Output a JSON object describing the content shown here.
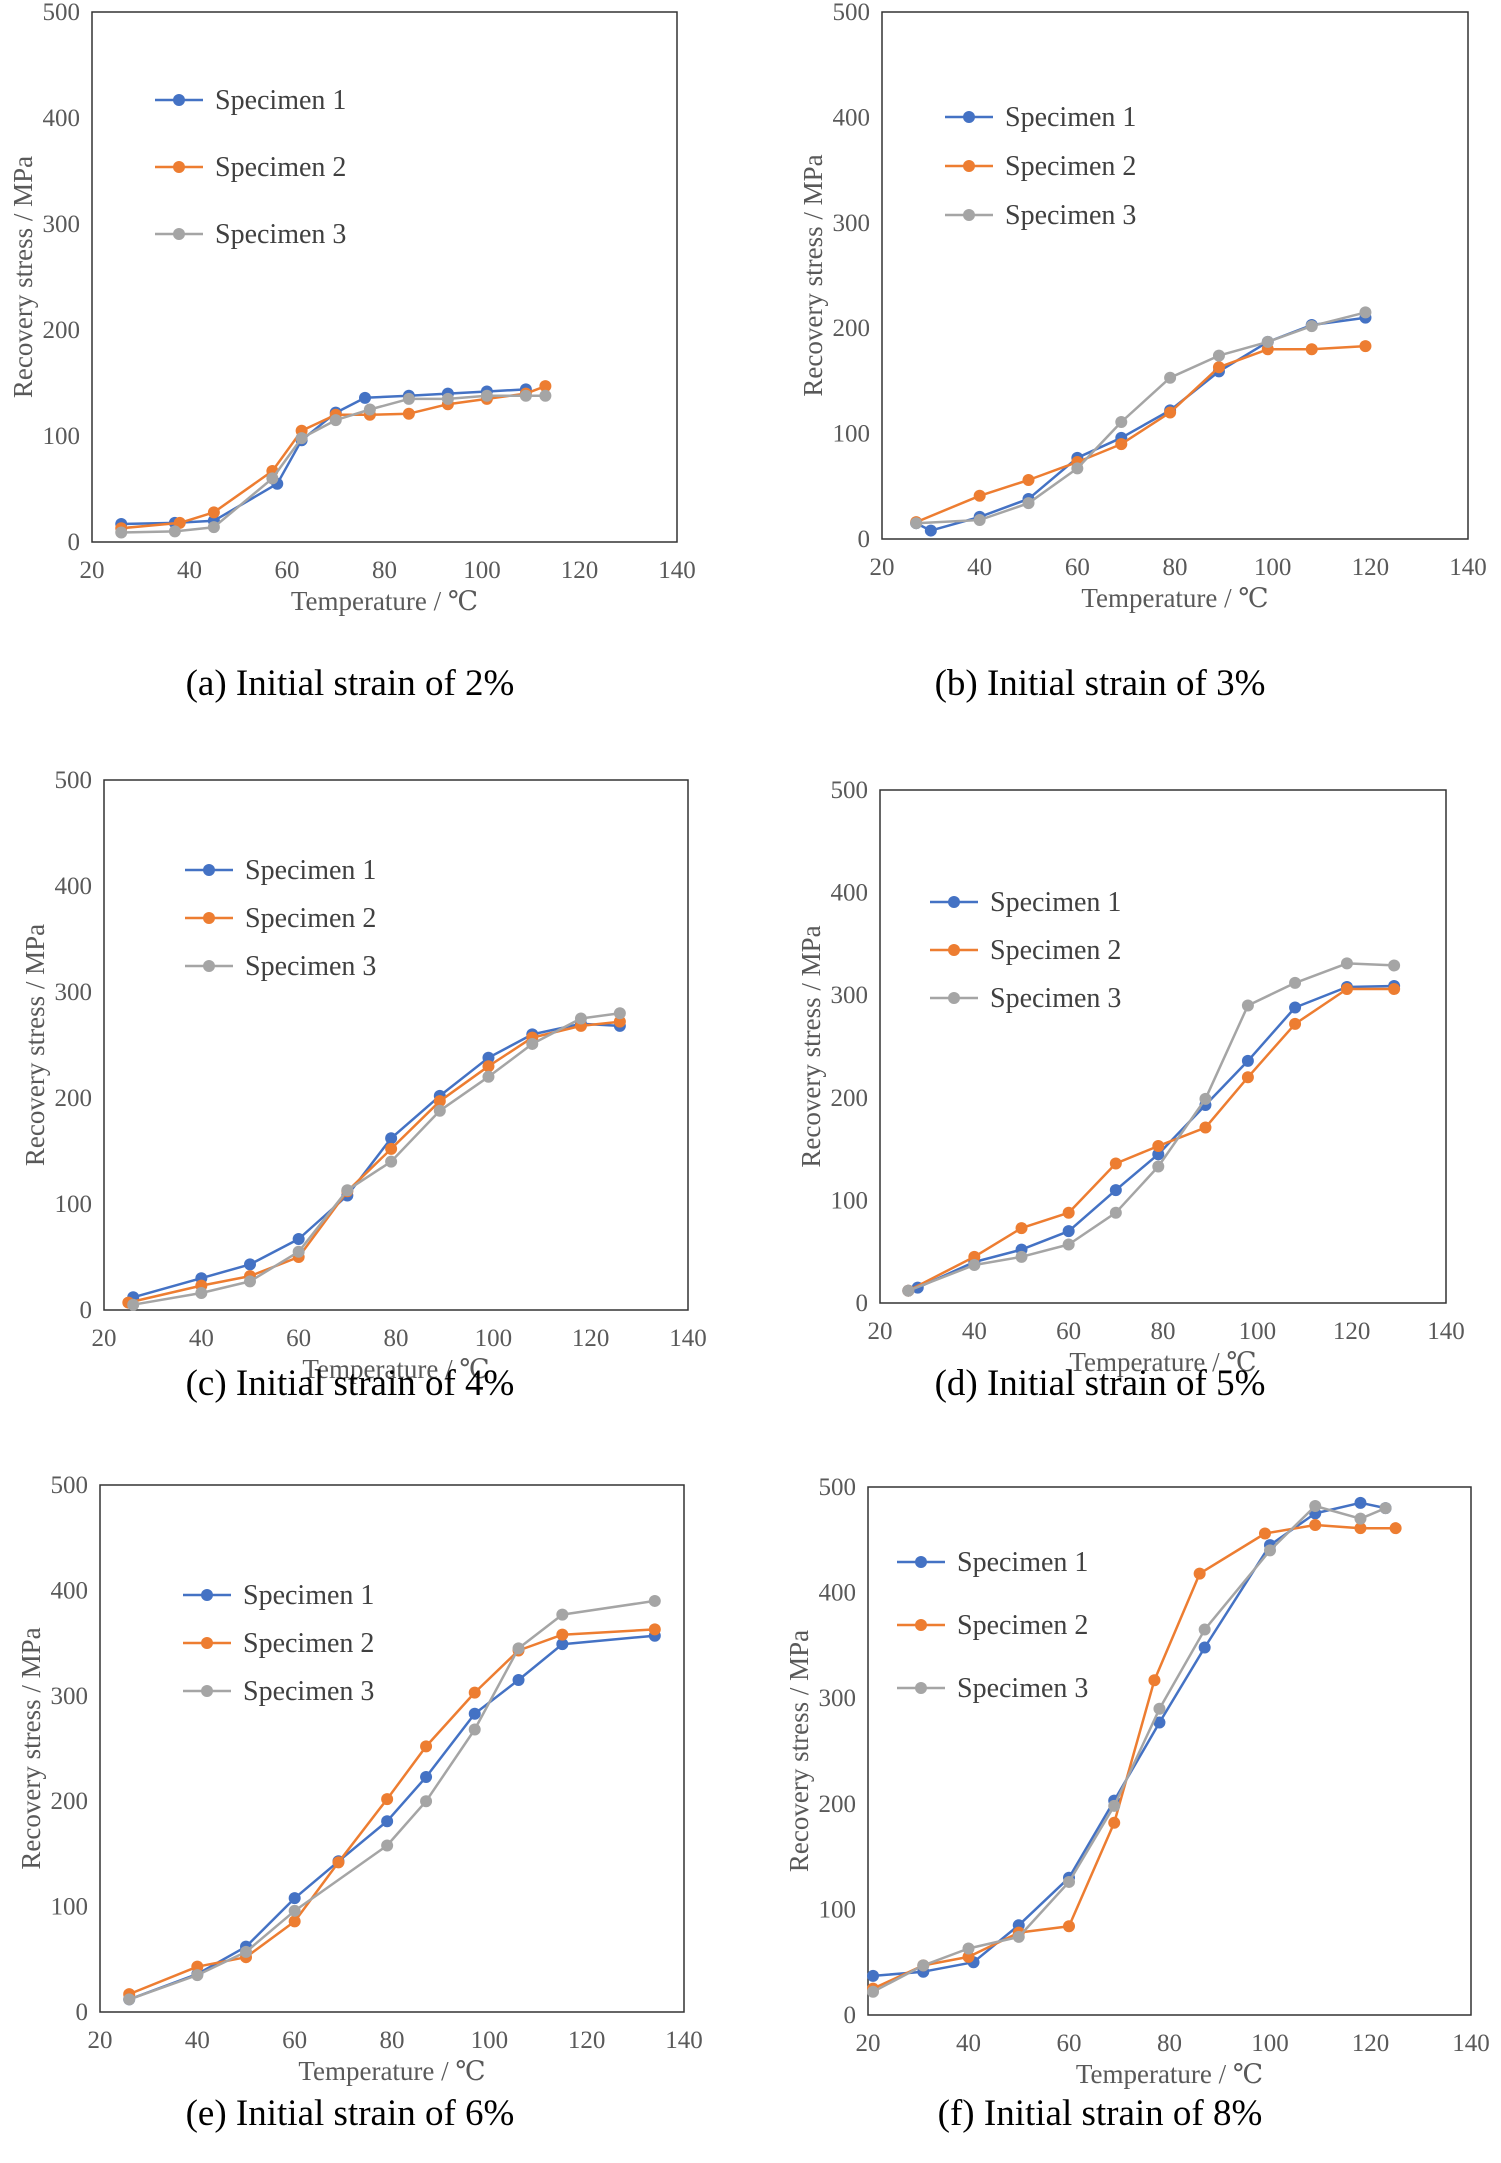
{
  "chart_data": [
    {
      "type": "line",
      "caption": "(a) Initial strain of 2%",
      "xlabel": "Temperature / ℃",
      "ylabel": "Recovery stress / MPa",
      "xlim": [
        20,
        140
      ],
      "ylim": [
        0,
        500
      ],
      "xticks": [
        "20",
        "40",
        "60",
        "80",
        "100",
        "120",
        "140"
      ],
      "yticks": [
        "0",
        "100",
        "200",
        "300",
        "400",
        "500"
      ],
      "legend_position": "upper-left",
      "series": [
        {
          "name": "Specimen 1",
          "color": "#4472C4",
          "x": [
            26,
            37,
            45,
            58,
            63,
            70,
            76,
            85,
            93,
            101,
            109
          ],
          "y": [
            17,
            18,
            20,
            55,
            96,
            122,
            136,
            138,
            140,
            142,
            144
          ]
        },
        {
          "name": "Specimen 2",
          "color": "#ED7D31",
          "x": [
            26,
            38,
            45,
            57,
            63,
            70,
            77,
            85,
            93,
            101,
            109,
            113
          ],
          "y": [
            13,
            18,
            28,
            67,
            105,
            120,
            120,
            121,
            130,
            135,
            140,
            147
          ]
        },
        {
          "name": "Specimen 3",
          "color": "#A5A5A5",
          "x": [
            26,
            37,
            45,
            57,
            63,
            70,
            77,
            85,
            93,
            101,
            109,
            113
          ],
          "y": [
            9,
            10,
            14,
            60,
            98,
            115,
            125,
            135,
            135,
            138,
            138,
            138
          ]
        }
      ]
    },
    {
      "type": "line",
      "caption": "(b) Initial strain of 3%",
      "xlabel": "Temperature / ℃",
      "ylabel": "Recovery stress / MPa",
      "xlim": [
        20,
        140
      ],
      "ylim": [
        0,
        500
      ],
      "xticks": [
        "20",
        "40",
        "60",
        "80",
        "100",
        "120",
        "140"
      ],
      "yticks": [
        "0",
        "100",
        "200",
        "300",
        "400",
        "500"
      ],
      "legend_position": "upper-left",
      "series": [
        {
          "name": "Specimen 1",
          "color": "#4472C4",
          "x": [
            27,
            30,
            40,
            50,
            60,
            69,
            79,
            89,
            99,
            108,
            119
          ],
          "y": [
            15,
            8,
            21,
            38,
            77,
            96,
            122,
            159,
            187,
            203,
            210
          ]
        },
        {
          "name": "Specimen 2",
          "color": "#ED7D31",
          "x": [
            27,
            40,
            50,
            60,
            69,
            79,
            89,
            99,
            108,
            119
          ],
          "y": [
            16,
            41,
            56,
            73,
            90,
            120,
            163,
            180,
            180,
            183
          ]
        },
        {
          "name": "Specimen 3",
          "color": "#A5A5A5",
          "x": [
            27,
            40,
            50,
            60,
            69,
            79,
            89,
            99,
            108,
            119
          ],
          "y": [
            15,
            18,
            34,
            67,
            111,
            153,
            174,
            187,
            202,
            215
          ]
        }
      ]
    },
    {
      "type": "line",
      "caption": "(c) Initial strain of 4%",
      "xlabel": "Temperature / ℃",
      "ylabel": "Recovery stress / MPa",
      "xlim": [
        20,
        140
      ],
      "ylim": [
        0,
        500
      ],
      "xticks": [
        "20",
        "40",
        "60",
        "80",
        "100",
        "120",
        "140"
      ],
      "yticks": [
        "0",
        "100",
        "200",
        "300",
        "400",
        "500"
      ],
      "legend_position": "upper-left",
      "series": [
        {
          "name": "Specimen 1",
          "color": "#4472C4",
          "x": [
            26,
            40,
            50,
            60,
            70,
            79,
            89,
            99,
            108,
            118,
            126
          ],
          "y": [
            12,
            30,
            43,
            67,
            108,
            162,
            202,
            238,
            260,
            270,
            268
          ]
        },
        {
          "name": "Specimen 2",
          "color": "#ED7D31",
          "x": [
            25,
            40,
            50,
            60,
            70,
            79,
            89,
            99,
            108,
            118,
            126
          ],
          "y": [
            7,
            23,
            32,
            50,
            112,
            152,
            197,
            230,
            257,
            268,
            272
          ]
        },
        {
          "name": "Specimen 3",
          "color": "#A5A5A5",
          "x": [
            26,
            40,
            50,
            60,
            70,
            79,
            89,
            99,
            108,
            118,
            126
          ],
          "y": [
            5,
            16,
            27,
            55,
            113,
            140,
            188,
            220,
            251,
            275,
            280
          ]
        }
      ]
    },
    {
      "type": "line",
      "caption": "(d) Initial strain of 5%",
      "xlabel": "Temperature / ℃",
      "ylabel": "Recovery stress / MPa",
      "xlim": [
        20,
        140
      ],
      "ylim": [
        0,
        500
      ],
      "xticks": [
        "20",
        "40",
        "60",
        "80",
        "100",
        "120",
        "140"
      ],
      "yticks": [
        "0",
        "100",
        "200",
        "300",
        "400",
        "500"
      ],
      "legend_position": "upper-left",
      "series": [
        {
          "name": "Specimen 1",
          "color": "#4472C4",
          "x": [
            26,
            28,
            40,
            50,
            60,
            70,
            79,
            89,
            98,
            108,
            119,
            129
          ],
          "y": [
            12,
            15,
            40,
            52,
            70,
            110,
            145,
            193,
            236,
            288,
            308,
            309
          ]
        },
        {
          "name": "Specimen 2",
          "color": "#ED7D31",
          "x": [
            26,
            40,
            50,
            60,
            70,
            79,
            89,
            98,
            108,
            119,
            129
          ],
          "y": [
            12,
            45,
            73,
            88,
            136,
            153,
            171,
            220,
            272,
            306,
            306
          ]
        },
        {
          "name": "Specimen 3",
          "color": "#A5A5A5",
          "x": [
            26,
            40,
            50,
            60,
            70,
            79,
            89,
            98,
            108,
            119,
            129
          ],
          "y": [
            12,
            37,
            45,
            57,
            88,
            133,
            199,
            290,
            312,
            331,
            329
          ]
        }
      ]
    },
    {
      "type": "line",
      "caption": "(e) Initial strain of 6%",
      "xlabel": "Temperature / ℃",
      "ylabel": "Recovery stress / MPa",
      "xlim": [
        20,
        140
      ],
      "ylim": [
        0,
        500
      ],
      "xticks": [
        "20",
        "40",
        "60",
        "80",
        "100",
        "120",
        "140"
      ],
      "yticks": [
        "0",
        "100",
        "200",
        "300",
        "400",
        "500"
      ],
      "legend_position": "upper-left",
      "series": [
        {
          "name": "Specimen 1",
          "color": "#4472C4",
          "x": [
            26,
            40,
            50,
            60,
            69,
            79,
            87,
            97,
            106,
            115,
            134
          ],
          "y": [
            12,
            36,
            62,
            108,
            143,
            181,
            223,
            283,
            315,
            349,
            357
          ]
        },
        {
          "name": "Specimen 2",
          "color": "#ED7D31",
          "x": [
            26,
            40,
            50,
            60,
            69,
            79,
            87,
            97,
            106,
            115,
            134
          ],
          "y": [
            17,
            43,
            52,
            86,
            142,
            202,
            252,
            303,
            343,
            358,
            363
          ]
        },
        {
          "name": "Specimen 3",
          "color": "#A5A5A5",
          "x": [
            26,
            40,
            50,
            60,
            79,
            87,
            97,
            106,
            115,
            134
          ],
          "y": [
            12,
            35,
            57,
            96,
            158,
            200,
            268,
            345,
            377,
            390
          ]
        }
      ]
    },
    {
      "type": "line",
      "caption": "(f) Initial strain of 8%",
      "xlabel": "Temperature / ℃",
      "ylabel": "Recovery stress / MPa",
      "xlim": [
        20,
        140
      ],
      "ylim": [
        0,
        500
      ],
      "xticks": [
        "20",
        "40",
        "60",
        "80",
        "100",
        "120",
        "140"
      ],
      "yticks": [
        "0",
        "100",
        "200",
        "300",
        "400",
        "500"
      ],
      "legend_position": "upper-left",
      "series": [
        {
          "name": "Specimen 1",
          "color": "#4472C4",
          "x": [
            21,
            31,
            41,
            50,
            60,
            69,
            78,
            87,
            100,
            109,
            118,
            123
          ],
          "y": [
            37,
            41,
            50,
            85,
            130,
            203,
            277,
            348,
            445,
            475,
            485,
            480
          ]
        },
        {
          "name": "Specimen 2",
          "color": "#ED7D31",
          "x": [
            21,
            31,
            40,
            50,
            60,
            69,
            77,
            86,
            99,
            109,
            118,
            125
          ],
          "y": [
            25,
            47,
            55,
            78,
            84,
            182,
            317,
            418,
            456,
            464,
            461,
            461
          ]
        },
        {
          "name": "Specimen 3",
          "color": "#A5A5A5",
          "x": [
            21,
            31,
            40,
            50,
            60,
            69,
            78,
            87,
            100,
            109,
            118,
            123
          ],
          "y": [
            22,
            47,
            63,
            74,
            126,
            198,
            290,
            365,
            440,
            482,
            470,
            480
          ]
        }
      ]
    }
  ]
}
